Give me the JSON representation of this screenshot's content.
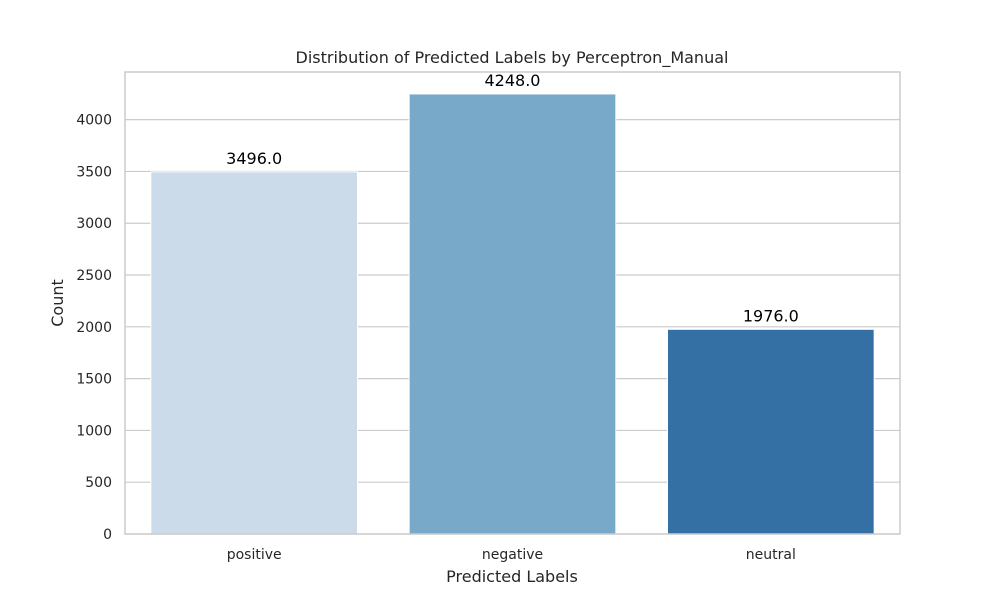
{
  "chart_data": {
    "type": "bar",
    "title": "Distribution of Predicted Labels by Perceptron_Manual",
    "xlabel": "Predicted Labels",
    "ylabel": "Count",
    "categories": [
      "positive",
      "negative",
      "neutral"
    ],
    "values": [
      3496,
      4248,
      1976
    ],
    "data_labels": [
      "3496.0",
      "4248.0",
      "1976.0"
    ],
    "colors": [
      "#cbdbea",
      "#78a9c9",
      "#3470a3"
    ],
    "ylim": [
      0,
      4460
    ],
    "yticks": [
      0,
      500,
      1000,
      1500,
      2000,
      2500,
      3000,
      3500,
      4000
    ],
    "grid": "horizontal",
    "background_color": "#ffffff",
    "grid_color": "#cccccc"
  }
}
